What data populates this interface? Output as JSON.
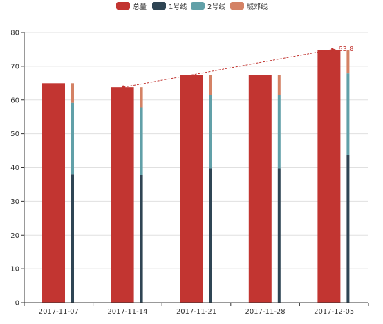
{
  "chart_data": {
    "type": "bar",
    "categories": [
      "2017-11-07",
      "2017-11-14",
      "2017-11-21",
      "2017-11-28",
      "2017-12-05"
    ],
    "ylim": [
      0,
      80
    ],
    "yticks": [
      0,
      10,
      20,
      30,
      40,
      50,
      60,
      70,
      80
    ],
    "grid": true,
    "legend_position": "top-center",
    "series": [
      {
        "name": "总量",
        "color": "#c23531",
        "stack": "total",
        "values": [
          65.0,
          63.8,
          67.5,
          67.5,
          74.7
        ]
      },
      {
        "name": "1号线",
        "color": "#2f4554",
        "stack": "lines",
        "values": [
          38.0,
          37.8,
          39.8,
          39.8,
          43.6
        ]
      },
      {
        "name": "2号线",
        "color": "#61a0a8",
        "stack": "lines",
        "values": [
          21.2,
          20.0,
          21.6,
          21.6,
          24.3
        ]
      },
      {
        "name": "城郊线",
        "color": "#d48265",
        "stack": "lines",
        "values": [
          5.8,
          6.0,
          6.1,
          6.1,
          6.8
        ]
      }
    ],
    "annotation": {
      "type": "dashed-line",
      "color": "#c23531",
      "from": {
        "category": "2017-11-14",
        "value": 63.8
      },
      "to": {
        "category": "2017-12-05",
        "value": 74.7
      },
      "label": "63.8"
    }
  }
}
